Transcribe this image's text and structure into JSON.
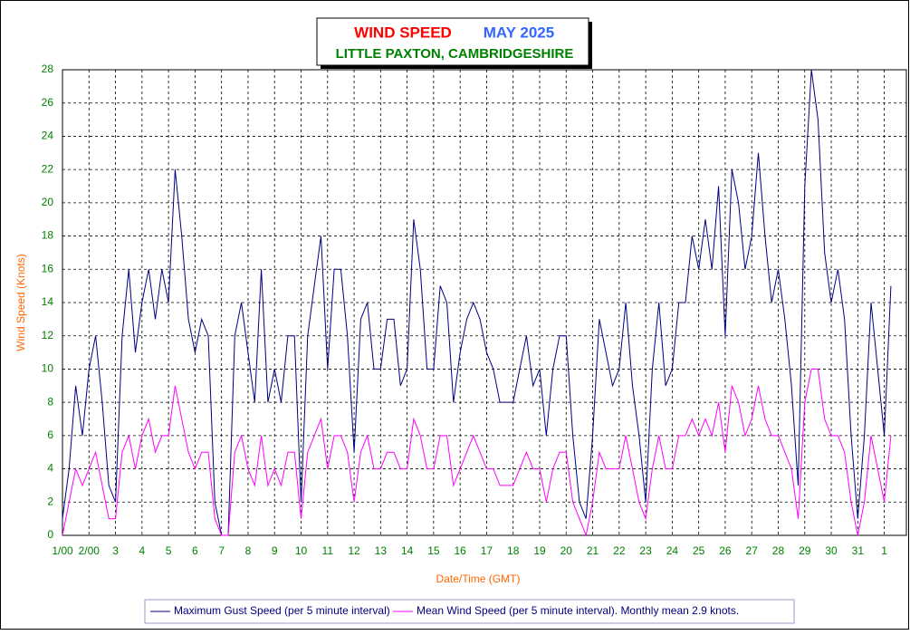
{
  "chart_data": {
    "type": "line",
    "title": "WIND SPEED",
    "subtitle": "MAY 2025",
    "location": "LITTLE PAXTON, CAMBRIDGESHIRE",
    "x_label": "Date/Time (GMT)",
    "y_label": "Wind Speed (Knots)",
    "x": [
      0,
      6,
      12,
      18,
      24,
      30,
      36,
      42,
      48,
      54,
      60,
      66,
      72,
      78,
      84,
      90,
      96,
      102,
      108,
      114,
      120,
      126,
      132,
      138,
      144,
      150,
      156,
      162,
      168,
      174,
      180,
      186,
      192,
      198,
      204,
      210,
      216,
      222,
      228,
      234,
      240,
      246,
      252,
      258,
      264,
      270,
      276,
      282,
      288,
      294,
      300,
      306,
      312,
      318,
      324,
      330,
      336,
      342,
      348,
      354,
      360,
      366,
      372,
      378,
      384,
      390,
      396,
      402,
      408,
      414,
      420,
      426,
      432,
      438,
      444,
      450,
      456,
      462,
      468,
      474,
      480,
      486,
      492,
      498,
      504,
      510,
      516,
      522,
      528,
      534,
      540,
      546,
      552,
      558,
      564,
      570,
      576,
      582,
      588,
      594,
      600,
      606,
      612,
      618,
      624,
      630,
      636,
      642,
      648,
      654,
      660,
      666,
      672,
      678,
      684,
      690,
      696,
      702,
      708,
      714,
      720,
      726,
      732,
      738,
      744,
      750
    ],
    "series": [
      {
        "name": "Maximum Gust Speed (per 5 minute interval)",
        "color": "#000080",
        "values": [
          1,
          4,
          9,
          6,
          10,
          12,
          8,
          3,
          2,
          12,
          16,
          11,
          14,
          16,
          13,
          16,
          14,
          22,
          18,
          13,
          11,
          13,
          12,
          2,
          0,
          0,
          12,
          14,
          11,
          8,
          16,
          8,
          10,
          8,
          12,
          12,
          2,
          12,
          15,
          18,
          10,
          16,
          16,
          12,
          5,
          13,
          14,
          10,
          10,
          13,
          13,
          9,
          10,
          19,
          16,
          10,
          10,
          15,
          14,
          8,
          11,
          13,
          14,
          13,
          11,
          10,
          8,
          8,
          8,
          10,
          12,
          9,
          10,
          6,
          10,
          12,
          12,
          6,
          2,
          1,
          6,
          13,
          11,
          9,
          10,
          14,
          9,
          6,
          2,
          10,
          14,
          9,
          10,
          14,
          14,
          18,
          16,
          19,
          16,
          21,
          12,
          22,
          20,
          16,
          18,
          23,
          18,
          14,
          16,
          13,
          9,
          3,
          21,
          28,
          25,
          17,
          14,
          16,
          13,
          6,
          1,
          6,
          14,
          10,
          6,
          15
        ]
      },
      {
        "name": "Mean Wind Speed (per 5 minute interval). Monthly mean 2.9 knots.",
        "color": "#ff00ff",
        "values": [
          0,
          2,
          4,
          3,
          4,
          5,
          3,
          1,
          1,
          5,
          6,
          4,
          6,
          7,
          5,
          6,
          6,
          9,
          7,
          5,
          4,
          5,
          5,
          1,
          0,
          0,
          5,
          6,
          4,
          3,
          6,
          3,
          4,
          3,
          5,
          5,
          1,
          5,
          6,
          7,
          4,
          6,
          6,
          5,
          2,
          5,
          6,
          4,
          4,
          5,
          5,
          4,
          4,
          7,
          6,
          4,
          4,
          6,
          6,
          3,
          4,
          5,
          6,
          5,
          4,
          4,
          3,
          3,
          3,
          4,
          5,
          4,
          4,
          2,
          4,
          5,
          5,
          2,
          1,
          0,
          2,
          5,
          4,
          4,
          4,
          6,
          4,
          2,
          1,
          4,
          6,
          4,
          4,
          6,
          6,
          7,
          6,
          7,
          6,
          8,
          5,
          9,
          8,
          6,
          7,
          9,
          7,
          6,
          6,
          5,
          4,
          1,
          8,
          10,
          10,
          7,
          6,
          6,
          5,
          2,
          0,
          2,
          6,
          4,
          2,
          6
        ]
      }
    ],
    "xlim": [
      0,
      764
    ],
    "xticks": [
      {
        "value": 0,
        "label": "1/00"
      },
      {
        "value": 24,
        "label": "2/00"
      },
      {
        "value": 48,
        "label": "3"
      },
      {
        "value": 72,
        "label": "4"
      },
      {
        "value": 96,
        "label": "5"
      },
      {
        "value": 120,
        "label": "6"
      },
      {
        "value": 144,
        "label": "7"
      },
      {
        "value": 168,
        "label": "8"
      },
      {
        "value": 192,
        "label": "9"
      },
      {
        "value": 216,
        "label": "10"
      },
      {
        "value": 240,
        "label": "11"
      },
      {
        "value": 264,
        "label": "12"
      },
      {
        "value": 288,
        "label": "13"
      },
      {
        "value": 312,
        "label": "14"
      },
      {
        "value": 336,
        "label": "15"
      },
      {
        "value": 360,
        "label": "16"
      },
      {
        "value": 384,
        "label": "17"
      },
      {
        "value": 408,
        "label": "18"
      },
      {
        "value": 432,
        "label": "19"
      },
      {
        "value": 456,
        "label": "20"
      },
      {
        "value": 480,
        "label": "21"
      },
      {
        "value": 504,
        "label": "22"
      },
      {
        "value": 528,
        "label": "23"
      },
      {
        "value": 552,
        "label": "24"
      },
      {
        "value": 576,
        "label": "25"
      },
      {
        "value": 600,
        "label": "26"
      },
      {
        "value": 624,
        "label": "27"
      },
      {
        "value": 648,
        "label": "28"
      },
      {
        "value": 672,
        "label": "29"
      },
      {
        "value": 696,
        "label": "30"
      },
      {
        "value": 720,
        "label": "31"
      },
      {
        "value": 744,
        "label": "1"
      }
    ],
    "ylim": [
      0,
      28
    ],
    "yticks": [
      0,
      2,
      4,
      6,
      8,
      10,
      12,
      14,
      16,
      18,
      20,
      22,
      24,
      26,
      28
    ],
    "grid": true,
    "legend": "bottom"
  }
}
